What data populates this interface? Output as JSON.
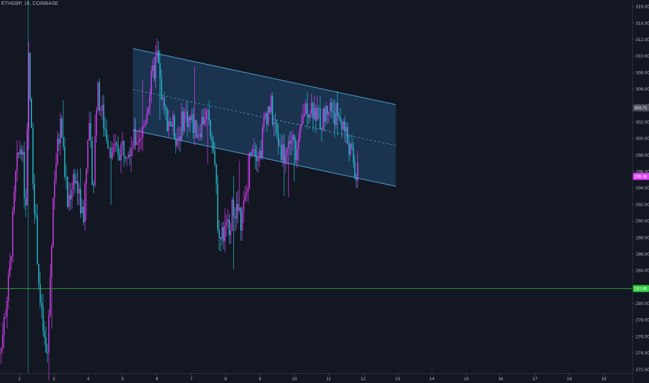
{
  "header": {
    "symbol": "ETHGBP, 1h, COINBASE"
  },
  "colors": {
    "background": "#131722",
    "up_candle": "#e040fb",
    "down_candle": "#26c6da",
    "channel_fill": "#1e3d5e",
    "channel_line": "#4fa3d9",
    "support_line": "#2e9e3e",
    "axis_text": "#b2b5be",
    "price_badge_current": "#e040fb",
    "price_badge_support": "#2ecc40",
    "price_badge_marker": "#4a4f5c"
  },
  "chart_data": {
    "type": "candlestick",
    "xlabel": "",
    "ylabel": "",
    "y_axis_position": "right",
    "ylim": [
      271,
      316.5
    ],
    "xlim": [
      1.3,
      19.8
    ],
    "y_ticks": [
      "272.00",
      "274.00",
      "276.00",
      "278.00",
      "280.00",
      "282.00",
      "284.00",
      "286.00",
      "288.00",
      "290.00",
      "292.00",
      "294.00",
      "296.00",
      "298.00",
      "300.00",
      "302.00",
      "304.00",
      "306.00",
      "308.00",
      "310.00",
      "312.00",
      "314.00",
      "316.00"
    ],
    "x_ticks": [
      {
        "value": 2,
        "label": "2"
      },
      {
        "value": 3,
        "label": "3"
      },
      {
        "value": 4,
        "label": "4"
      },
      {
        "value": 5,
        "label": "5"
      },
      {
        "value": 6,
        "label": "6"
      },
      {
        "value": 7,
        "label": "7"
      },
      {
        "value": 8,
        "label": "8"
      },
      {
        "value": 9,
        "label": "9"
      },
      {
        "value": 10,
        "label": "10"
      },
      {
        "value": 11,
        "label": "11"
      },
      {
        "value": 12,
        "label": "12"
      },
      {
        "value": 13,
        "label": "13"
      },
      {
        "value": 14,
        "label": "14"
      },
      {
        "value": 15,
        "label": "15"
      },
      {
        "value": 16,
        "label": "16"
      },
      {
        "value": 17,
        "label": "17"
      },
      {
        "value": 18,
        "label": "18"
      },
      {
        "value": 19,
        "label": "19"
      }
    ],
    "vertical_marker_x": 2.25,
    "support_level": 281.8,
    "support_label": "281.86",
    "current_price": 295.4,
    "current_label": "295.38",
    "marker_price": 303.7,
    "marker_label": "303.71",
    "channel": {
      "start_x": 5.3,
      "end_x": 12.95,
      "upper_start": 310.9,
      "upper_end": 304.1,
      "lower_start": 301.0,
      "lower_end": 294.2
    },
    "anchors": [
      [
        1.3,
        273.5
      ],
      [
        1.5,
        276
      ],
      [
        1.7,
        283
      ],
      [
        1.9,
        296
      ],
      [
        2.05,
        300
      ],
      [
        2.2,
        290
      ],
      [
        2.25,
        311
      ],
      [
        2.4,
        295
      ],
      [
        2.6,
        280
      ],
      [
        2.8,
        272.5
      ],
      [
        3.0,
        295
      ],
      [
        3.2,
        302
      ],
      [
        3.4,
        292
      ],
      [
        3.6,
        296
      ],
      [
        3.85,
        290
      ],
      [
        4.0,
        302
      ],
      [
        4.15,
        294
      ],
      [
        4.25,
        306
      ],
      [
        4.5,
        301
      ],
      [
        4.75,
        298
      ],
      [
        5.0,
        299
      ],
      [
        5.3,
        299.5
      ],
      [
        5.6,
        301
      ],
      [
        5.8,
        306
      ],
      [
        6.0,
        310
      ],
      [
        6.2,
        303
      ],
      [
        6.4,
        302
      ],
      [
        6.6,
        300
      ],
      [
        6.8,
        303
      ],
      [
        7.0,
        302
      ],
      [
        7.2,
        301
      ],
      [
        7.4,
        303
      ],
      [
        7.65,
        300
      ],
      [
        7.75,
        291
      ],
      [
        7.85,
        288
      ],
      [
        8.05,
        289
      ],
      [
        8.25,
        292
      ],
      [
        8.45,
        290
      ],
      [
        8.6,
        293
      ],
      [
        8.75,
        300
      ],
      [
        9.0,
        298
      ],
      [
        9.15,
        303
      ],
      [
        9.3,
        304
      ],
      [
        9.5,
        300
      ],
      [
        9.7,
        298
      ],
      [
        9.9,
        300
      ],
      [
        10.1,
        298
      ],
      [
        10.3,
        304
      ],
      [
        10.5,
        304
      ],
      [
        10.8,
        302
      ],
      [
        11.0,
        304
      ],
      [
        11.2,
        303
      ],
      [
        11.4,
        302
      ],
      [
        11.6,
        299
      ],
      [
        11.75,
        296
      ],
      [
        11.85,
        295.4
      ]
    ],
    "candle_start_x": 1.3,
    "candle_end_x": 11.85,
    "candle_step_x": 0.042
  }
}
